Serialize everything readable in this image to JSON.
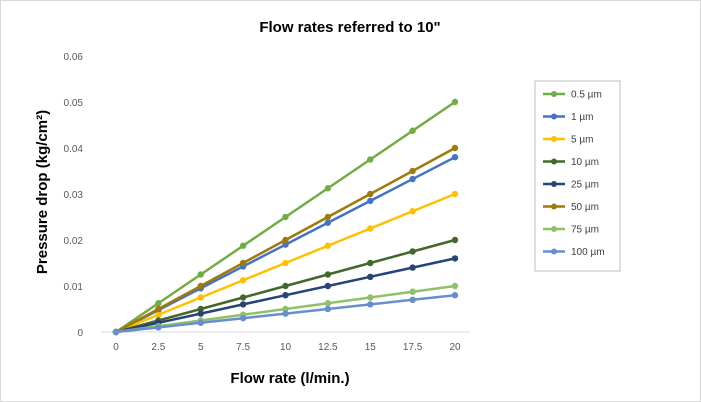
{
  "chart_data": {
    "type": "line",
    "title": "Flow rates referred to 10\"",
    "xlabel": "Flow rate (l/min.)",
    "ylabel": "Pressure drop (kg/cm²)",
    "x": [
      0,
      2.5,
      5,
      7.5,
      10,
      12.5,
      15,
      17.5,
      20
    ],
    "x_tick_labels": [
      "0",
      "2.5",
      "5",
      "7.5",
      "10",
      "12.5",
      "15",
      "17.5",
      "20"
    ],
    "ylim": [
      0,
      0.06
    ],
    "y_ticks": [
      0,
      0.01,
      0.02,
      0.03,
      0.04,
      0.05,
      0.06
    ],
    "y_tick_labels": [
      "0",
      "0.01",
      "0.02",
      "0.03",
      "0.04",
      "0.05",
      "0.06"
    ],
    "grid": false,
    "legend_position": "right",
    "series": [
      {
        "name": "0.5 µm",
        "color": "#70ad47",
        "values": [
          0,
          0.00625,
          0.0125,
          0.01875,
          0.025,
          0.03125,
          0.0375,
          0.04375,
          0.05
        ]
      },
      {
        "name": "1 µm",
        "color": "#4472c4",
        "values": [
          0,
          0.00475,
          0.0095,
          0.01425,
          0.019,
          0.02375,
          0.0285,
          0.03325,
          0.038
        ]
      },
      {
        "name": "5 µm",
        "color": "#ffc000",
        "values": [
          0,
          0.00375,
          0.0075,
          0.01125,
          0.015,
          0.01875,
          0.0225,
          0.02625,
          0.03
        ]
      },
      {
        "name": "10 µm",
        "color": "#43682b",
        "values": [
          0,
          0.0025,
          0.005,
          0.0075,
          0.01,
          0.0125,
          0.015,
          0.0175,
          0.02
        ]
      },
      {
        "name": "25 µm",
        "color": "#264478",
        "values": [
          0,
          0.002,
          0.004,
          0.006,
          0.008,
          0.01,
          0.012,
          0.014,
          0.016
        ]
      },
      {
        "name": "50 µm",
        "color": "#9e7a0a",
        "values": [
          0,
          0.005,
          0.01,
          0.015,
          0.02,
          0.025,
          0.03,
          0.035,
          0.04
        ]
      },
      {
        "name": "75 µm",
        "color": "#8fc16b",
        "values": [
          0,
          0.00125,
          0.0025,
          0.00375,
          0.005,
          0.00625,
          0.0075,
          0.00875,
          0.01
        ]
      },
      {
        "name": "100 µm",
        "color": "#698ed0",
        "values": [
          0,
          0.001,
          0.002,
          0.003,
          0.004,
          0.005,
          0.006,
          0.007,
          0.008
        ]
      }
    ]
  }
}
